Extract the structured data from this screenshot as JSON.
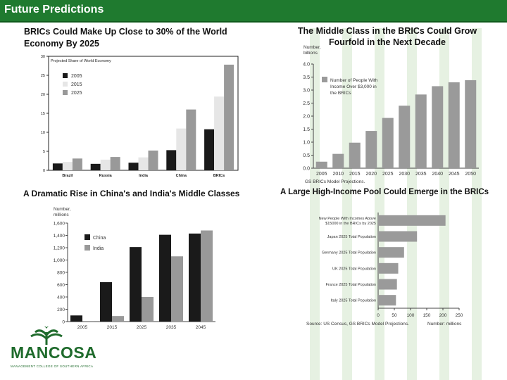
{
  "header": {
    "title": "Future Predictions"
  },
  "titles": {
    "tl": [
      "BRICs Could Make Up Close to 30% of the World",
      "Economy By 2025"
    ],
    "tr": [
      "The Middle Class in the BRICs Could Grow",
      "Fourfold in the Next Decade"
    ],
    "bl": "A Dramatic Rise in China's and India's Middle Classes",
    "br": "A Large High-Income Pool Could Emerge in the BRICs"
  },
  "logo": {
    "name": "MANCOSA",
    "tagline": "MANAGEMENT COLLEGE OF SOUTHERN AFRICA"
  },
  "colors": {
    "header": "#1f7a2f",
    "dark": "#1a1a1a",
    "mid": "#999999",
    "light": "#e6e6e6",
    "bar": "#9a9a9a",
    "brand": "#1f6b2c"
  },
  "chart_data": [
    {
      "type": "bar",
      "title": "BRICs Could Make Up Close to 30% of the World Economy By 2025",
      "ylabel": "Projected Share of World Economy",
      "ylim": [
        0,
        30
      ],
      "yticks": [
        0,
        5,
        10,
        15,
        20,
        25,
        30
      ],
      "categories": [
        "Brazil",
        "Russia",
        "India",
        "China",
        "BRICs"
      ],
      "series": [
        {
          "name": "2005",
          "values": [
            1.8,
            1.7,
            2.0,
            5.3,
            10.8
          ]
        },
        {
          "name": "2015",
          "values": [
            2.2,
            2.8,
            3.4,
            11.0,
            19.4
          ]
        },
        {
          "name": "2025",
          "values": [
            3.1,
            3.5,
            5.2,
            16.0,
            27.8
          ]
        }
      ],
      "legend_position": "top-left"
    },
    {
      "type": "bar",
      "title": "The Middle Class in the BRICs Could Grow Fourfold in the Next Decade",
      "ylabel": [
        "Number,",
        "billions"
      ],
      "ylim": [
        0,
        4.0
      ],
      "yticks": [
        "0.0",
        "0.5",
        "1.0",
        "1.5",
        "2.0",
        "2.5",
        "3.0",
        "3.5",
        "4.0"
      ],
      "categories": [
        "2005",
        "2010",
        "2015",
        "2020",
        "2025",
        "2030",
        "2035",
        "2040",
        "2045",
        "2050"
      ],
      "series": [
        {
          "name": "Number of People With Income Over $3,000 in the BRICs",
          "values": [
            0.25,
            0.55,
            0.98,
            1.43,
            1.93,
            2.4,
            2.83,
            3.15,
            3.3,
            3.38
          ]
        }
      ],
      "legend_lines": [
        "Number of People With",
        "Income Over $3,000 in",
        "the BRICs"
      ],
      "source": "GS BRICs Model Projections.",
      "legend_position": "top-left"
    },
    {
      "type": "bar",
      "title": "A Dramatic Rise in China's and India's Middle Classes",
      "ylabel": [
        "Number,",
        "millions"
      ],
      "ylim": [
        0,
        1600
      ],
      "yticks": [
        "0",
        "200",
        "400",
        "600",
        "800",
        "1,000",
        "1,200",
        "1,400",
        "1,600"
      ],
      "categories": [
        "2005",
        "2015",
        "2025",
        "2035",
        "2045"
      ],
      "series": [
        {
          "name": "China",
          "values": [
            100,
            640,
            1210,
            1410,
            1430
          ]
        },
        {
          "name": "India",
          "values": [
            10,
            90,
            400,
            1060,
            1480
          ]
        }
      ],
      "legend_position": "top-left"
    },
    {
      "type": "bar",
      "orientation": "horizontal",
      "title": "A Large High-Income Pool Could Emerge in the BRICs",
      "xlim": [
        0,
        250
      ],
      "xticks": [
        "0",
        "50",
        "100",
        "150",
        "200",
        "250"
      ],
      "xlabel": "Number: millions",
      "categories": [
        "New People With Incomes Above $15000 in the BRICs by 2025",
        "Japan 2025 Total Population",
        "Germany 2025 Total Population",
        "UK 2025 Total Population",
        "France 2025 Total Population",
        "Italy 2025 Total Population"
      ],
      "category_lines": [
        [
          "New People With Incomes Above",
          "$15000 in the BRICs by 2025"
        ],
        [
          "Japan 2025 Total Population"
        ],
        [
          "Germany 2025 Total Population"
        ],
        [
          "UK 2025 Total Population"
        ],
        [
          "France 2025 Total Population"
        ],
        [
          "Italy 2025 Total Population"
        ]
      ],
      "values": [
        208,
        120,
        80,
        62,
        58,
        55
      ],
      "source": "Source: US Census, GS BRICs Model Projections."
    }
  ]
}
